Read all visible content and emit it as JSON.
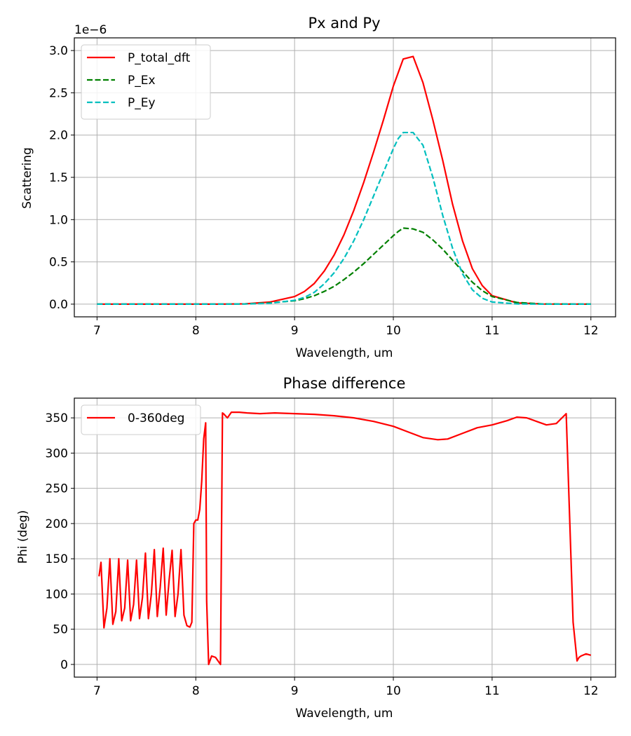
{
  "chart_data": [
    {
      "type": "line",
      "title": "Px and Py",
      "xlabel": "Wavelength, um",
      "ylabel": "Scattering",
      "xlim": [
        6.77,
        12.25
      ],
      "ylim": [
        -1.5e-07,
        3.15e-06
      ],
      "offset_text": "1e−6",
      "grid": true,
      "legend_position": "upper left",
      "x_ticks": [
        7,
        8,
        9,
        10,
        11,
        12
      ],
      "x_tick_labels": [
        "7",
        "8",
        "9",
        "10",
        "11",
        "12"
      ],
      "y_ticks": [
        0,
        5e-07,
        1e-06,
        1.5e-06,
        2e-06,
        2.5e-06,
        3e-06
      ],
      "y_tick_labels": [
        "0.0",
        "0.5",
        "1.0",
        "1.5",
        "2.0",
        "2.5",
        "3.0"
      ],
      "x": [
        7.0,
        7.5,
        8.0,
        8.25,
        8.5,
        8.75,
        9.0,
        9.1,
        9.2,
        9.3,
        9.4,
        9.5,
        9.6,
        9.7,
        9.8,
        9.9,
        10.0,
        10.05,
        10.1,
        10.2,
        10.3,
        10.4,
        10.5,
        10.6,
        10.7,
        10.8,
        10.9,
        11.0,
        11.25,
        11.5,
        12.0
      ],
      "series": [
        {
          "name": "P_total_dft",
          "color": "#ff0000",
          "dash": "solid",
          "values": [
            0,
            0,
            0,
            1e-10,
            4e-09,
            2.5e-08,
            9e-08,
            1.5e-07,
            2.45e-07,
            3.9e-07,
            5.8e-07,
            8.2e-07,
            1.11e-06,
            1.44e-06,
            1.8e-06,
            2.18e-06,
            2.58e-06,
            2.74e-06,
            2.9e-06,
            2.93e-06,
            2.62e-06,
            2.18e-06,
            1.7e-06,
            1.18e-06,
            7.5e-07,
            4.2e-07,
            2.2e-07,
            1e-07,
            1.5e-08,
            2e-09,
            0
          ]
        },
        {
          "name": "P_Ex",
          "color": "#008000",
          "dash": "dashed",
          "values": [
            0,
            0,
            0,
            1e-10,
            3e-09,
            1.5e-08,
            4e-08,
            6.5e-08,
            1e-07,
            1.5e-07,
            2.1e-07,
            2.9e-07,
            3.8e-07,
            4.8e-07,
            5.9e-07,
            7e-07,
            8.1e-07,
            8.6e-07,
            9e-07,
            8.9e-07,
            8.5e-07,
            7.6e-07,
            6.5e-07,
            5.2e-07,
            3.9e-07,
            2.6e-07,
            1.6e-07,
            9e-08,
            2e-08,
            3e-09,
            0
          ]
        },
        {
          "name": "P_Ey",
          "color": "#00bfbf",
          "dash": "dashed",
          "values": [
            0,
            0,
            0,
            0,
            2e-09,
            1e-08,
            4.5e-08,
            8e-08,
            1.4e-07,
            2.4e-07,
            3.7e-07,
            5.4e-07,
            7.5e-07,
            1e-06,
            1.28e-06,
            1.56e-06,
            1.84e-06,
            1.96e-06,
            2.03e-06,
            2.03e-06,
            1.88e-06,
            1.5e-06,
            1.05e-06,
            6.6e-07,
            3.6e-07,
            1.7e-07,
            7e-08,
            2.5e-08,
            3e-09,
            0,
            0
          ]
        }
      ]
    },
    {
      "type": "line",
      "title": "Phase difference",
      "xlabel": "Wavelength, um",
      "ylabel": "Phi (deg)",
      "xlim": [
        6.77,
        12.25
      ],
      "ylim": [
        -18,
        378
      ],
      "grid": true,
      "legend_position": "upper left",
      "x_ticks": [
        7,
        8,
        9,
        10,
        11,
        12
      ],
      "x_tick_labels": [
        "7",
        "8",
        "9",
        "10",
        "11",
        "12"
      ],
      "y_ticks": [
        0,
        50,
        100,
        150,
        200,
        250,
        300,
        350
      ],
      "y_tick_labels": [
        "0",
        "50",
        "100",
        "150",
        "200",
        "250",
        "300",
        "350"
      ],
      "series": [
        {
          "name": "0-360deg",
          "color": "#ff0000",
          "dash": "solid",
          "x": [
            7.02,
            7.04,
            7.07,
            7.1,
            7.13,
            7.16,
            7.19,
            7.22,
            7.25,
            7.28,
            7.31,
            7.34,
            7.37,
            7.4,
            7.43,
            7.46,
            7.49,
            7.52,
            7.55,
            7.58,
            7.61,
            7.64,
            7.67,
            7.7,
            7.73,
            7.76,
            7.79,
            7.82,
            7.85,
            7.88,
            7.91,
            7.94,
            7.96,
            7.98,
            8.0,
            8.02,
            8.04,
            8.06,
            8.08,
            8.1,
            8.11,
            8.13,
            8.16,
            8.2,
            8.25,
            8.27,
            8.28,
            8.32,
            8.36,
            8.44,
            8.52,
            8.65,
            8.8,
            9.0,
            9.2,
            9.4,
            9.6,
            9.8,
            10.0,
            10.15,
            10.3,
            10.45,
            10.55,
            10.7,
            10.85,
            11.0,
            11.15,
            11.25,
            11.35,
            11.45,
            11.55,
            11.65,
            11.75,
            11.82,
            11.86,
            11.88,
            11.9,
            11.95,
            12.0
          ],
          "values": [
            125,
            145,
            52,
            80,
            150,
            57,
            75,
            150,
            62,
            80,
            148,
            62,
            85,
            148,
            65,
            95,
            158,
            65,
            100,
            163,
            68,
            110,
            165,
            70,
            120,
            162,
            68,
            100,
            163,
            70,
            55,
            53,
            60,
            200,
            205,
            205,
            220,
            260,
            320,
            343,
            90,
            0,
            12,
            10,
            0,
            357,
            356,
            350,
            358,
            358,
            357,
            356,
            357,
            356,
            355,
            353,
            350,
            345,
            338,
            330,
            322,
            319,
            320,
            328,
            336,
            340,
            346,
            351,
            350,
            345,
            340,
            342,
            356,
            60,
            5,
            10,
            12,
            15,
            13
          ]
        }
      ]
    }
  ]
}
